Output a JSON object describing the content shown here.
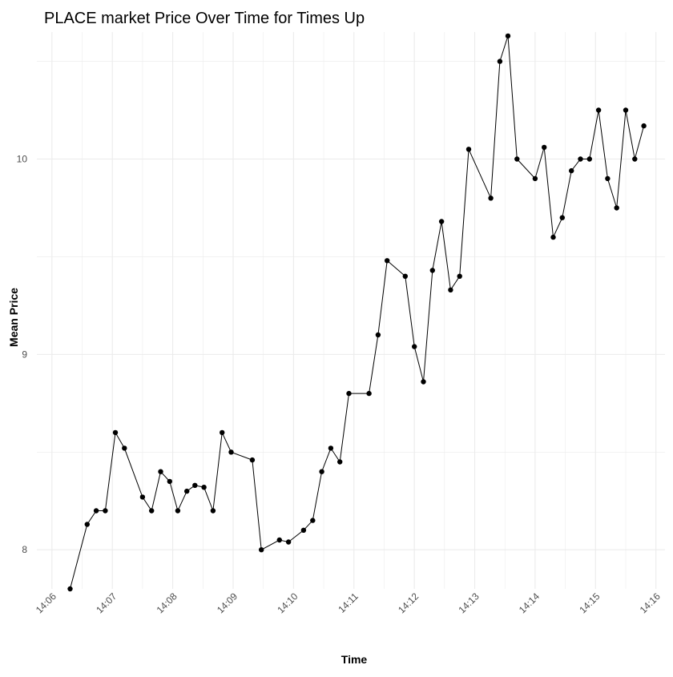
{
  "chart_data": {
    "type": "line",
    "title": "PLACE market Price Over Time for Times Up",
    "xlabel": "Time",
    "ylabel": "Mean Price",
    "x_ticks": [
      "14:06",
      "14:07",
      "14:08",
      "14:09",
      "14:10",
      "14:11",
      "14:12",
      "14:13",
      "14:14",
      "14:15",
      "14:16"
    ],
    "y_ticks": [
      "8",
      "9",
      "10"
    ],
    "xlim": [
      "14:05:45",
      "14:16:09"
    ],
    "ylim": [
      7.8,
      10.65
    ],
    "grid": true,
    "legend": "none",
    "colors": {
      "line": "#000000",
      "point": "#000000",
      "grid": "#ebebeb",
      "text": "#4d4d4d",
      "title": "#000000"
    },
    "series": [
      {
        "x": [
          "14:06:18",
          "14:06:35",
          "14:06:44",
          "14:06:53",
          "14:07:03",
          "14:07:12",
          "14:07:30",
          "14:07:39",
          "14:07:48",
          "14:07:57",
          "14:08:05",
          "14:08:14",
          "14:08:22",
          "14:08:31",
          "14:08:40",
          "14:08:49",
          "14:08:58",
          "14:09:19",
          "14:09:28",
          "14:09:46",
          "14:09:55",
          "14:10:10",
          "14:10:19",
          "14:10:28",
          "14:10:37",
          "14:10:46",
          "14:10:55",
          "14:11:15",
          "14:11:24",
          "14:11:33",
          "14:11:51",
          "14:12:00",
          "14:12:09",
          "14:12:18",
          "14:12:27",
          "14:12:36",
          "14:12:45",
          "14:12:54",
          "14:13:16",
          "14:13:25",
          "14:13:33",
          "14:13:42",
          "14:14:00",
          "14:14:09",
          "14:14:18",
          "14:14:27",
          "14:14:36",
          "14:14:45",
          "14:14:54",
          "14:15:03",
          "14:15:12",
          "14:15:21",
          "14:15:30",
          "14:15:39",
          "14:15:48"
        ],
        "values": [
          7.8,
          8.13,
          8.2,
          8.2,
          8.6,
          8.52,
          8.27,
          8.2,
          8.4,
          8.35,
          8.2,
          8.3,
          8.33,
          8.32,
          8.2,
          8.6,
          8.5,
          8.46,
          8.0,
          8.05,
          8.04,
          8.1,
          8.15,
          8.4,
          8.52,
          8.45,
          8.8,
          8.8,
          9.1,
          9.48,
          9.4,
          9.04,
          8.86,
          9.43,
          9.68,
          9.33,
          9.4,
          10.05,
          9.8,
          10.5,
          10.63,
          10.0,
          9.9,
          10.06,
          9.6,
          9.7,
          9.94,
          10.0,
          10.0,
          10.25,
          9.9,
          9.75,
          10.25,
          10.0,
          10.17
        ]
      }
    ]
  }
}
